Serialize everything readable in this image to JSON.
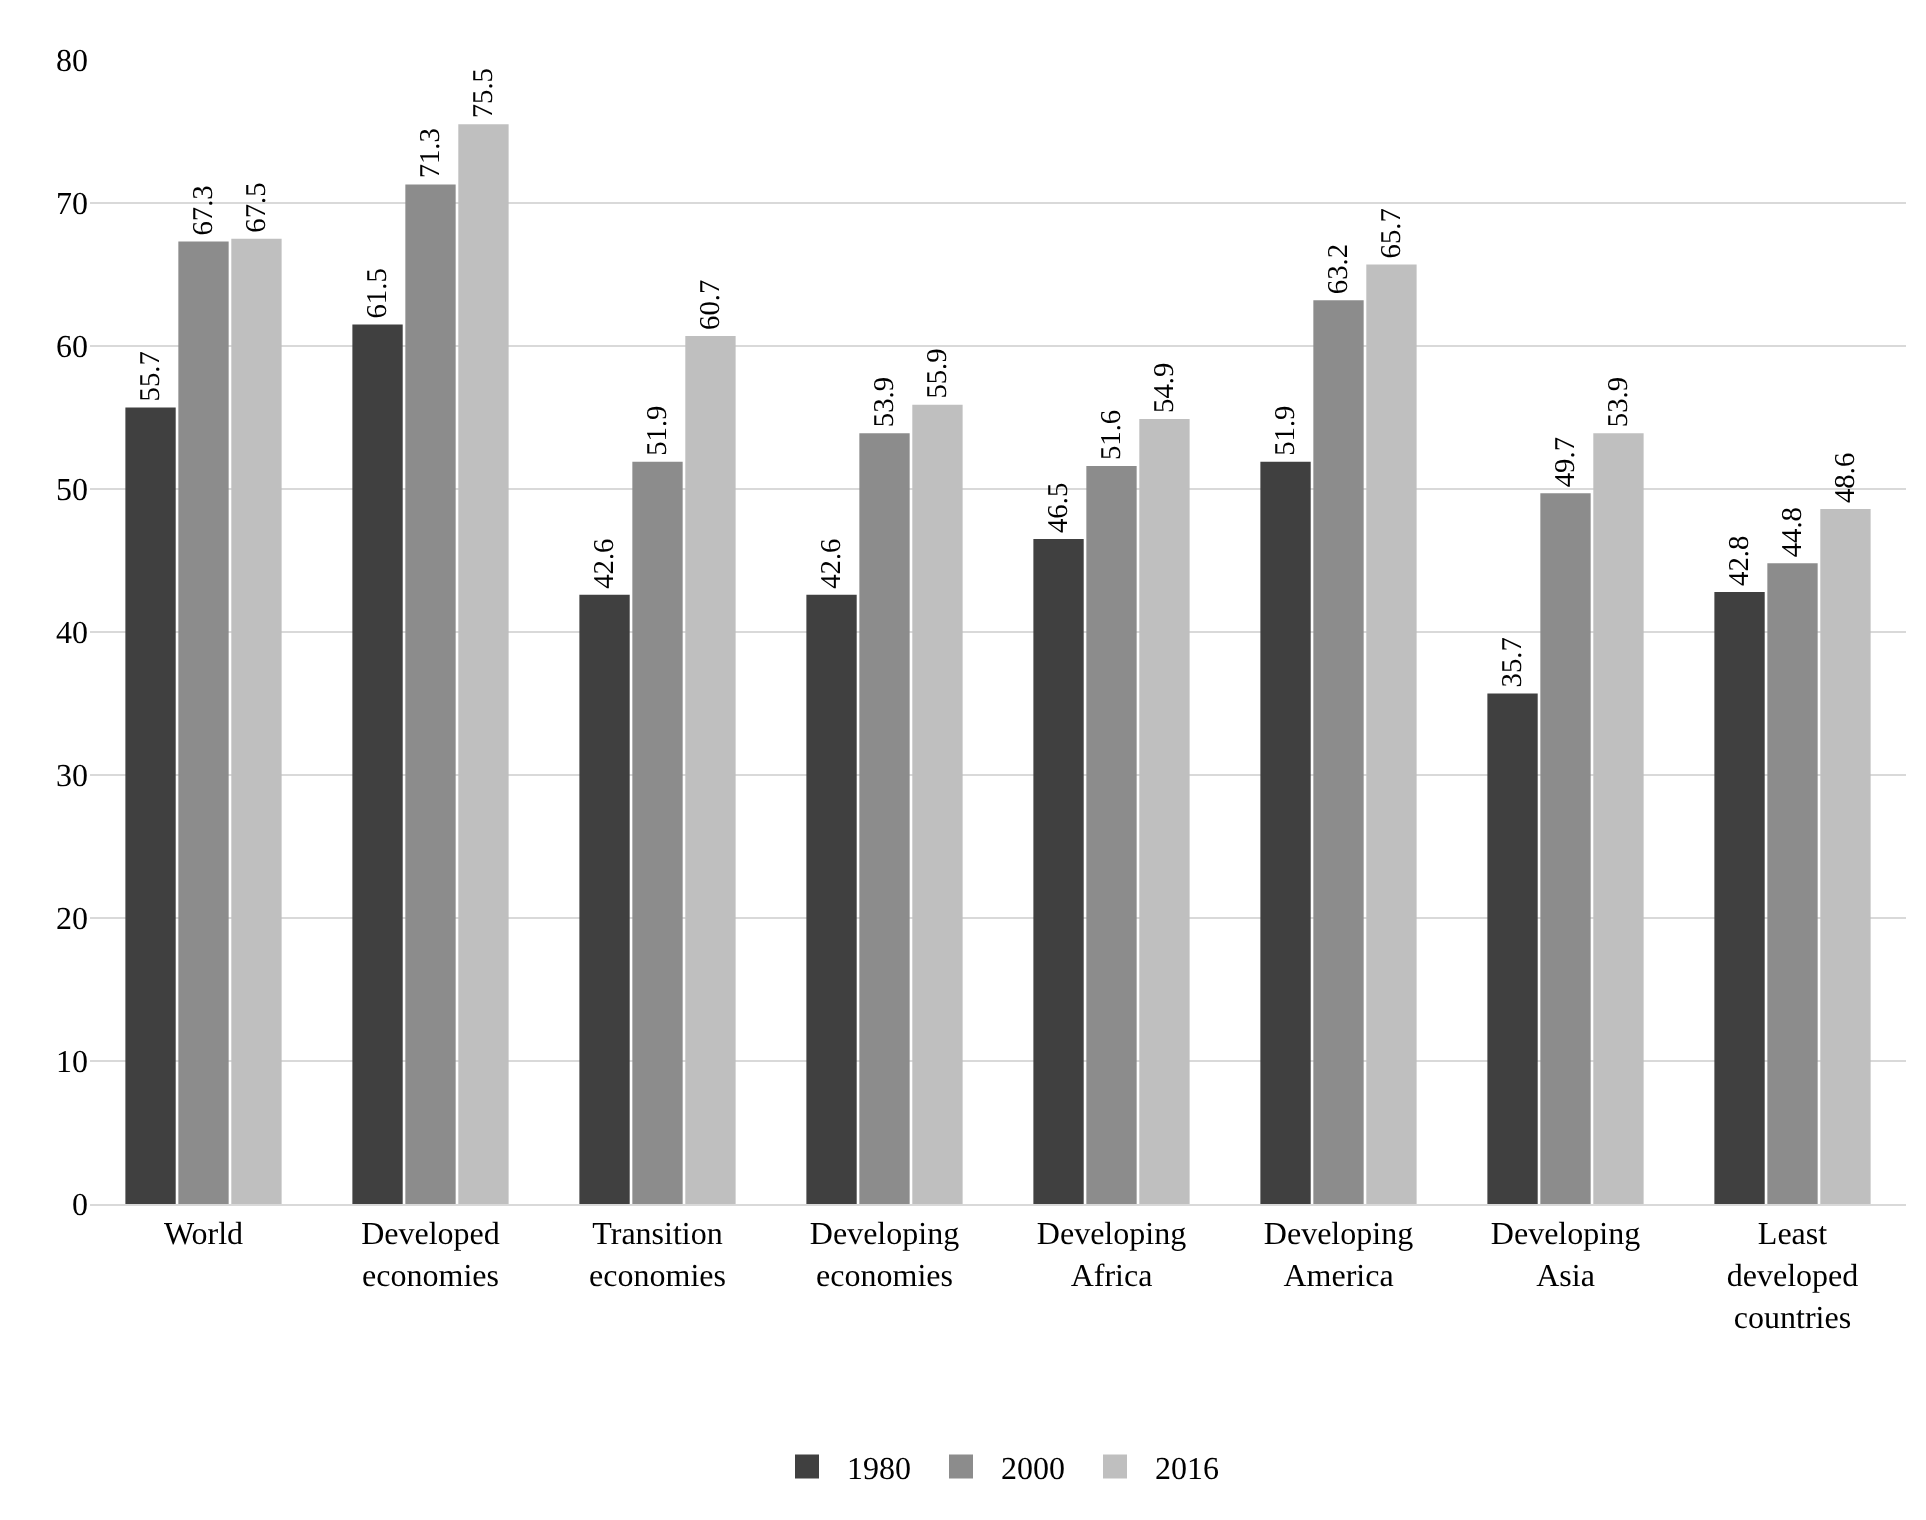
{
  "chart_data": {
    "type": "bar",
    "categories": [
      "World",
      "Developed economies",
      "Transition economies",
      "Developing economies",
      "Developing Africa",
      "Developing America",
      "Developing Asia",
      "Least developed countries"
    ],
    "series": [
      {
        "name": "1980",
        "color": "#404040",
        "values": [
          55.7,
          61.5,
          42.6,
          42.6,
          46.5,
          51.9,
          35.7,
          42.8
        ]
      },
      {
        "name": "2000",
        "color": "#8c8c8c",
        "values": [
          67.3,
          71.3,
          51.9,
          53.9,
          51.6,
          63.2,
          49.7,
          44.8
        ]
      },
      {
        "name": "2016",
        "color": "#bfbfbf",
        "values": [
          67.5,
          75.5,
          60.7,
          55.9,
          54.9,
          65.7,
          53.9,
          48.6
        ]
      }
    ],
    "ylim": [
      0,
      80
    ],
    "yticks": [
      0,
      10,
      20,
      30,
      40,
      50,
      60,
      70,
      80
    ],
    "grid": "y",
    "legend": "bottom",
    "data_labels": true
  }
}
